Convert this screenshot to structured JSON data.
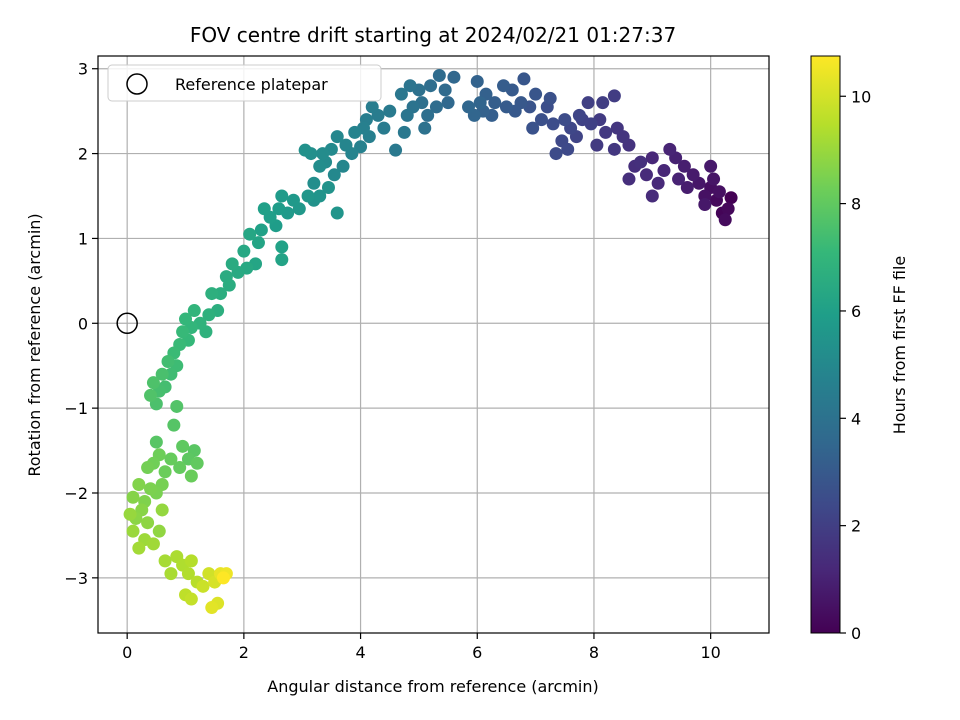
{
  "chart_data": {
    "type": "scatter",
    "title": "FOV centre drift starting at 2024/02/21 01:27:37",
    "xlabel": "Angular distance from reference (arcmin)",
    "ylabel": "Rotation from reference (arcmin)",
    "xlim": [
      -0.5,
      11.0
    ],
    "ylim": [
      -3.65,
      3.15
    ],
    "xticks": [
      0,
      2,
      4,
      6,
      8,
      10
    ],
    "yticks": [
      -3,
      -2,
      -1,
      0,
      1,
      2,
      3
    ],
    "grid": true,
    "legend": {
      "position": "top-left",
      "entries": [
        "Reference platepar"
      ]
    },
    "reference_point": {
      "name": "Reference platepar",
      "x": 0,
      "y": 0
    },
    "colorbar": {
      "label": "Hours from first FF file",
      "range": [
        0,
        10.75
      ],
      "ticks": [
        0,
        2,
        4,
        6,
        8,
        10
      ],
      "colormap": [
        "#440154",
        "#482878",
        "#3e4989",
        "#31688e",
        "#26828e",
        "#1f9e89",
        "#35b779",
        "#6ece58",
        "#b5de2b",
        "#fde725"
      ]
    },
    "series": [
      {
        "name": "drift",
        "points": [
          [
            10.35,
            1.48,
            0.0
          ],
          [
            10.2,
            1.3,
            0.1
          ],
          [
            10.3,
            1.35,
            0.2
          ],
          [
            10.1,
            1.45,
            0.25
          ],
          [
            10.25,
            1.22,
            0.3
          ],
          [
            10.0,
            1.6,
            0.4
          ],
          [
            10.15,
            1.55,
            0.45
          ],
          [
            9.9,
            1.5,
            0.5
          ],
          [
            10.05,
            1.7,
            0.6
          ],
          [
            9.8,
            1.65,
            0.65
          ],
          [
            9.9,
            1.4,
            0.7
          ],
          [
            10.0,
            1.85,
            0.75
          ],
          [
            9.7,
            1.75,
            0.8
          ],
          [
            9.6,
            1.6,
            0.85
          ],
          [
            9.55,
            1.85,
            0.9
          ],
          [
            9.4,
            1.95,
            1.0
          ],
          [
            9.45,
            1.7,
            1.05
          ],
          [
            9.3,
            2.05,
            1.1
          ],
          [
            9.2,
            1.8,
            1.15
          ],
          [
            9.0,
            1.95,
            1.2
          ],
          [
            9.1,
            1.65,
            1.25
          ],
          [
            8.9,
            1.75,
            1.3
          ],
          [
            9.0,
            1.5,
            1.35
          ],
          [
            8.7,
            1.85,
            1.4
          ],
          [
            8.6,
            1.7,
            1.45
          ],
          [
            8.8,
            1.9,
            1.5
          ],
          [
            8.6,
            2.1,
            1.6
          ],
          [
            8.5,
            2.2,
            1.65
          ],
          [
            8.4,
            2.3,
            1.7
          ],
          [
            8.35,
            2.05,
            1.75
          ],
          [
            8.2,
            2.25,
            1.8
          ],
          [
            8.05,
            2.1,
            1.85
          ],
          [
            8.1,
            2.4,
            1.9
          ],
          [
            8.35,
            2.68,
            1.95
          ],
          [
            8.15,
            2.6,
            2.0
          ],
          [
            7.9,
            2.6,
            2.05
          ],
          [
            7.95,
            2.35,
            2.1
          ],
          [
            7.8,
            2.4,
            2.15
          ],
          [
            7.7,
            2.2,
            2.2
          ],
          [
            7.75,
            2.45,
            2.25
          ],
          [
            7.6,
            2.3,
            2.3
          ],
          [
            7.45,
            2.15,
            2.35
          ],
          [
            7.55,
            2.05,
            2.4
          ],
          [
            7.35,
            2.0,
            2.45
          ],
          [
            7.5,
            2.4,
            2.5
          ],
          [
            7.3,
            2.35,
            2.55
          ],
          [
            7.2,
            2.55,
            2.6
          ],
          [
            7.1,
            2.4,
            2.65
          ],
          [
            7.25,
            2.65,
            2.7
          ],
          [
            6.95,
            2.3,
            2.75
          ],
          [
            6.9,
            2.55,
            2.8
          ],
          [
            7.0,
            2.7,
            2.85
          ],
          [
            6.8,
            2.88,
            2.9
          ],
          [
            6.75,
            2.6,
            2.95
          ],
          [
            6.65,
            2.5,
            3.0
          ],
          [
            6.6,
            2.75,
            3.05
          ],
          [
            6.5,
            2.55,
            3.1
          ],
          [
            6.45,
            2.8,
            3.15
          ],
          [
            6.3,
            2.6,
            3.2
          ],
          [
            6.25,
            2.45,
            3.25
          ],
          [
            6.15,
            2.7,
            3.3
          ],
          [
            6.1,
            2.5,
            3.35
          ],
          [
            6.0,
            2.85,
            3.4
          ],
          [
            6.05,
            2.6,
            3.45
          ],
          [
            5.95,
            2.45,
            3.5
          ],
          [
            5.85,
            2.55,
            3.55
          ],
          [
            5.6,
            2.9,
            3.6
          ],
          [
            5.5,
            2.6,
            3.65
          ],
          [
            5.45,
            2.75,
            3.7
          ],
          [
            5.35,
            2.92,
            3.75
          ],
          [
            5.3,
            2.55,
            3.8
          ],
          [
            5.2,
            2.8,
            3.85
          ],
          [
            5.15,
            2.45,
            3.9
          ],
          [
            5.05,
            2.6,
            3.95
          ],
          [
            5.0,
            2.75,
            4.0
          ],
          [
            5.1,
            2.3,
            4.05
          ],
          [
            4.9,
            2.55,
            4.1
          ],
          [
            4.85,
            2.8,
            4.15
          ],
          [
            4.8,
            2.45,
            4.2
          ],
          [
            4.7,
            2.7,
            4.25
          ],
          [
            4.75,
            2.25,
            4.3
          ],
          [
            4.6,
            2.04,
            4.35
          ],
          [
            4.5,
            2.5,
            4.4
          ],
          [
            4.4,
            2.3,
            4.45
          ],
          [
            4.3,
            2.45,
            4.5
          ],
          [
            4.2,
            2.55,
            4.55
          ],
          [
            4.1,
            2.4,
            4.6
          ],
          [
            4.15,
            2.2,
            4.65
          ],
          [
            4.05,
            2.3,
            4.7
          ],
          [
            4.0,
            2.08,
            4.75
          ],
          [
            3.9,
            2.25,
            4.8
          ],
          [
            3.85,
            2.0,
            4.85
          ],
          [
            3.75,
            2.1,
            4.9
          ],
          [
            3.7,
            1.85,
            4.95
          ],
          [
            3.6,
            2.2,
            5.0
          ],
          [
            3.55,
            1.75,
            5.05
          ],
          [
            3.5,
            2.05,
            5.1
          ],
          [
            3.4,
            1.9,
            5.15
          ],
          [
            3.35,
            2.0,
            5.2
          ],
          [
            3.3,
            1.85,
            5.25
          ],
          [
            3.2,
            1.65,
            5.3
          ],
          [
            3.15,
            2.0,
            5.35
          ],
          [
            3.05,
            2.04,
            5.4
          ],
          [
            3.2,
            1.45,
            5.45
          ],
          [
            3.45,
            1.6,
            5.5
          ],
          [
            3.3,
            1.5,
            5.55
          ],
          [
            3.6,
            1.3,
            5.6
          ],
          [
            3.1,
            1.5,
            5.65
          ],
          [
            2.95,
            1.35,
            5.7
          ],
          [
            2.85,
            1.45,
            5.75
          ],
          [
            2.75,
            1.3,
            5.8
          ],
          [
            2.65,
            1.5,
            5.85
          ],
          [
            2.6,
            1.35,
            5.9
          ],
          [
            2.55,
            1.15,
            5.95
          ],
          [
            2.45,
            1.25,
            6.0
          ],
          [
            2.35,
            1.35,
            6.05
          ],
          [
            2.3,
            1.1,
            6.1
          ],
          [
            2.65,
            0.9,
            6.15
          ],
          [
            2.65,
            0.75,
            6.2
          ],
          [
            2.25,
            0.95,
            6.25
          ],
          [
            2.2,
            0.7,
            6.3
          ],
          [
            2.1,
            1.05,
            6.35
          ],
          [
            2.0,
            0.85,
            6.4
          ],
          [
            2.05,
            0.65,
            6.45
          ],
          [
            1.9,
            0.6,
            6.5
          ],
          [
            1.8,
            0.7,
            6.55
          ],
          [
            1.7,
            0.55,
            6.6
          ],
          [
            1.75,
            0.45,
            6.65
          ],
          [
            1.6,
            0.35,
            6.7
          ],
          [
            1.55,
            0.15,
            6.75
          ],
          [
            1.45,
            0.35,
            6.8
          ],
          [
            1.4,
            0.1,
            6.85
          ],
          [
            1.35,
            -0.1,
            6.9
          ],
          [
            1.25,
            0.0,
            6.95
          ],
          [
            1.15,
            0.15,
            7.0
          ],
          [
            1.1,
            -0.05,
            7.05
          ],
          [
            1.0,
            0.05,
            7.1
          ],
          [
            1.05,
            -0.2,
            7.15
          ],
          [
            0.95,
            -0.1,
            7.2
          ],
          [
            0.9,
            -0.25,
            7.25
          ],
          [
            0.8,
            -0.35,
            7.3
          ],
          [
            0.85,
            -0.5,
            7.35
          ],
          [
            0.75,
            -0.6,
            7.4
          ],
          [
            0.7,
            -0.45,
            7.45
          ],
          [
            0.65,
            -0.75,
            7.5
          ],
          [
            0.55,
            -0.8,
            7.55
          ],
          [
            0.6,
            -0.6,
            7.6
          ],
          [
            0.5,
            -0.95,
            7.65
          ],
          [
            0.45,
            -0.7,
            7.7
          ],
          [
            0.4,
            -0.85,
            7.75
          ],
          [
            0.85,
            -0.98,
            7.8
          ],
          [
            0.8,
            -1.2,
            7.85
          ],
          [
            0.5,
            -1.4,
            7.9
          ],
          [
            1.15,
            -1.5,
            7.95
          ],
          [
            1.05,
            -1.6,
            8.0
          ],
          [
            0.95,
            -1.45,
            8.05
          ],
          [
            1.2,
            -1.65,
            8.1
          ],
          [
            0.9,
            -1.7,
            8.15
          ],
          [
            0.75,
            -1.6,
            8.2
          ],
          [
            1.1,
            -1.8,
            8.25
          ],
          [
            0.65,
            -1.75,
            8.3
          ],
          [
            0.55,
            -1.55,
            8.35
          ],
          [
            0.45,
            -1.65,
            8.4
          ],
          [
            0.35,
            -1.7,
            8.45
          ],
          [
            0.6,
            -1.9,
            8.5
          ],
          [
            0.5,
            -2.0,
            8.55
          ],
          [
            0.4,
            -1.95,
            8.6
          ],
          [
            0.3,
            -2.1,
            8.65
          ],
          [
            0.2,
            -1.9,
            8.7
          ],
          [
            0.1,
            -2.05,
            8.75
          ],
          [
            0.25,
            -2.2,
            8.8
          ],
          [
            0.15,
            -2.3,
            8.85
          ],
          [
            0.35,
            -2.35,
            8.9
          ],
          [
            0.55,
            -2.45,
            8.95
          ],
          [
            0.6,
            -2.2,
            9.0
          ],
          [
            0.05,
            -2.25,
            9.05
          ],
          [
            0.1,
            -2.45,
            9.1
          ],
          [
            0.3,
            -2.55,
            9.15
          ],
          [
            0.45,
            -2.6,
            9.2
          ],
          [
            0.2,
            -2.65,
            9.25
          ],
          [
            0.65,
            -2.8,
            9.3
          ],
          [
            0.75,
            -2.95,
            9.35
          ],
          [
            0.85,
            -2.75,
            9.4
          ],
          [
            0.95,
            -2.85,
            9.45
          ],
          [
            1.05,
            -2.95,
            9.5
          ],
          [
            1.1,
            -2.8,
            9.55
          ],
          [
            1.2,
            -3.05,
            9.6
          ],
          [
            1.0,
            -3.2,
            9.7
          ],
          [
            1.1,
            -3.25,
            9.8
          ],
          [
            1.3,
            -3.1,
            9.9
          ],
          [
            1.4,
            -2.95,
            10.0
          ],
          [
            1.5,
            -3.05,
            10.1
          ],
          [
            1.55,
            -3.3,
            10.2
          ],
          [
            1.45,
            -3.35,
            10.3
          ],
          [
            1.6,
            -2.95,
            10.4
          ],
          [
            1.7,
            -2.95,
            10.5
          ],
          [
            1.65,
            -3.0,
            10.75
          ]
        ]
      }
    ]
  }
}
